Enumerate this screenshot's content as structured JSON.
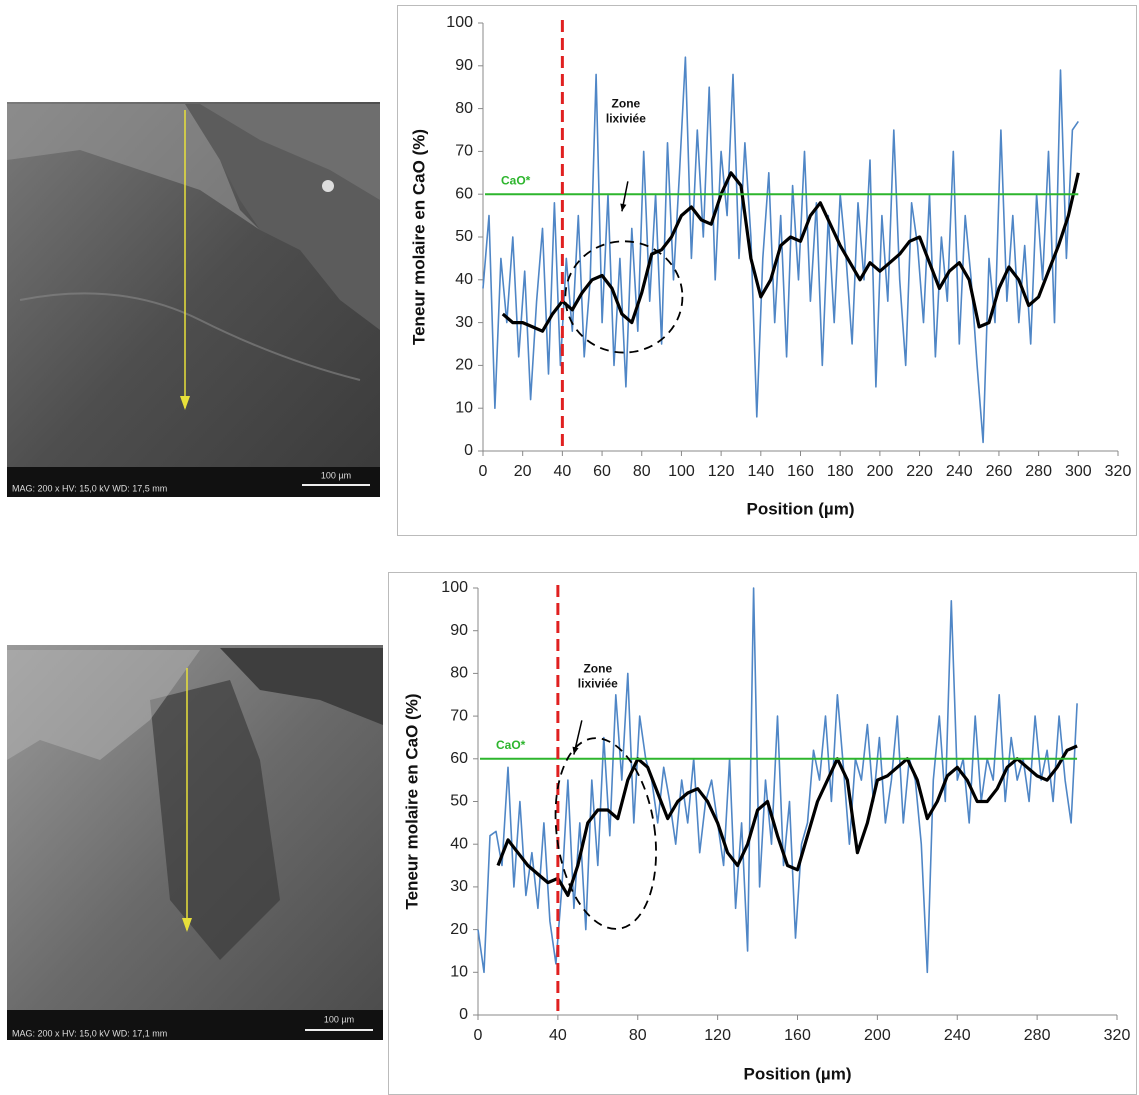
{
  "images": [
    {
      "info": "MAG: 200 x    HV: 15,0 kV    WD: 17,5 mm",
      "scale": "100 µm"
    },
    {
      "info": "MAG: 200 x    HV: 15,0 kV    WD: 17,1 mm",
      "scale": "100 µm"
    }
  ],
  "chart_data": [
    {
      "type": "line",
      "xlabel": "Position (µm)",
      "ylabel": "Teneur molaire en CaO (%)",
      "xlim": [
        0,
        320
      ],
      "xticks": [
        0,
        20,
        40,
        60,
        80,
        100,
        120,
        140,
        160,
        180,
        200,
        220,
        240,
        260,
        280,
        300,
        320
      ],
      "ylim": [
        0,
        100
      ],
      "yticks": [
        0,
        10,
        20,
        30,
        40,
        50,
        60,
        70,
        80,
        90,
        100
      ],
      "vline": 40,
      "vline_color": "#e02020",
      "hline": {
        "value": 60,
        "label": "CaO*"
      },
      "hline_color": "#2db52d",
      "annotation": [
        "Zone",
        "lixiviée"
      ],
      "series": [
        {
          "color": "#4f86c6",
          "width": 1.6,
          "x": [
            0,
            3,
            6,
            9,
            12,
            15,
            18,
            21,
            24,
            27,
            30,
            33,
            36,
            39,
            42,
            45,
            48,
            51,
            54,
            57,
            60,
            63,
            66,
            69,
            72,
            75,
            78,
            81,
            84,
            87,
            90,
            93,
            96,
            99,
            102,
            105,
            108,
            111,
            114,
            117,
            120,
            123,
            126,
            129,
            132,
            135,
            138,
            141,
            144,
            147,
            150,
            153,
            156,
            159,
            162,
            165,
            168,
            171,
            174,
            177,
            180,
            183,
            186,
            189,
            192,
            195,
            198,
            201,
            204,
            207,
            210,
            213,
            216,
            219,
            222,
            225,
            228,
            231,
            234,
            237,
            240,
            243,
            246,
            249,
            252,
            255,
            258,
            261,
            264,
            267,
            270,
            273,
            276,
            279,
            282,
            285,
            288,
            291,
            294,
            297,
            300
          ],
          "values": [
            38,
            55,
            10,
            45,
            30,
            50,
            22,
            42,
            12,
            35,
            52,
            18,
            58,
            20,
            45,
            28,
            55,
            22,
            40,
            88,
            30,
            60,
            20,
            45,
            15,
            52,
            28,
            70,
            35,
            60,
            25,
            72,
            40,
            65,
            92,
            45,
            75,
            50,
            85,
            40,
            70,
            55,
            88,
            45,
            72,
            50,
            8,
            45,
            65,
            30,
            55,
            22,
            62,
            40,
            70,
            35,
            58,
            20,
            55,
            30,
            60,
            45,
            25,
            58,
            40,
            68,
            15,
            55,
            35,
            75,
            40,
            20,
            58,
            48,
            30,
            60,
            22,
            50,
            35,
            70,
            25,
            55,
            40,
            20,
            2,
            45,
            30,
            75,
            35,
            55,
            30,
            48,
            25,
            60,
            40,
            70,
            30,
            89,
            45,
            75,
            77
          ]
        },
        {
          "color": "#000000",
          "width": 3.2,
          "x": [
            10,
            15,
            20,
            25,
            30,
            35,
            40,
            45,
            50,
            55,
            60,
            65,
            70,
            75,
            80,
            85,
            90,
            95,
            100,
            105,
            110,
            115,
            120,
            125,
            130,
            135,
            140,
            145,
            150,
            155,
            160,
            165,
            170,
            175,
            180,
            185,
            190,
            195,
            200,
            205,
            210,
            215,
            220,
            225,
            230,
            235,
            240,
            245,
            250,
            255,
            260,
            265,
            270,
            275,
            280,
            285,
            290,
            295,
            300
          ],
          "values": [
            32,
            30,
            30,
            29,
            28,
            32,
            35,
            33,
            37,
            40,
            41,
            38,
            32,
            30,
            37,
            46,
            47,
            50,
            55,
            57,
            54,
            53,
            60,
            65,
            62,
            45,
            36,
            40,
            48,
            50,
            49,
            55,
            58,
            53,
            48,
            44,
            40,
            44,
            42,
            44,
            46,
            49,
            50,
            44,
            38,
            42,
            44,
            40,
            29,
            30,
            38,
            43,
            40,
            34,
            36,
            42,
            48,
            55,
            65
          ]
        }
      ]
    },
    {
      "type": "line",
      "xlabel": "Position (µm)",
      "ylabel": "Teneur molaire en CaO (%)",
      "xlim": [
        0,
        320
      ],
      "xticks": [
        0,
        40,
        80,
        120,
        160,
        200,
        240,
        280,
        320
      ],
      "ylim": [
        0,
        100
      ],
      "yticks": [
        0,
        10,
        20,
        30,
        40,
        50,
        60,
        70,
        80,
        90,
        100
      ],
      "vline": 40,
      "vline_color": "#e02020",
      "hline": {
        "value": 60,
        "label": "CaO*"
      },
      "hline_color": "#2db52d",
      "annotation": [
        "Zone",
        "lixiviée"
      ],
      "series": [
        {
          "color": "#4f86c6",
          "width": 1.6,
          "x": [
            0,
            3,
            6,
            9,
            12,
            15,
            18,
            21,
            24,
            27,
            30,
            33,
            36,
            39,
            42,
            45,
            48,
            51,
            54,
            57,
            60,
            63,
            66,
            69,
            72,
            75,
            78,
            81,
            84,
            87,
            90,
            93,
            96,
            99,
            102,
            105,
            108,
            111,
            114,
            117,
            120,
            123,
            126,
            129,
            132,
            135,
            138,
            141,
            144,
            147,
            150,
            153,
            156,
            159,
            162,
            165,
            168,
            171,
            174,
            177,
            180,
            183,
            186,
            189,
            192,
            195,
            198,
            201,
            204,
            207,
            210,
            213,
            216,
            219,
            222,
            225,
            228,
            231,
            234,
            237,
            240,
            243,
            246,
            249,
            252,
            255,
            258,
            261,
            264,
            267,
            270,
            273,
            276,
            279,
            282,
            285,
            288,
            291,
            294,
            297,
            300
          ],
          "values": [
            20,
            10,
            42,
            43,
            35,
            58,
            30,
            50,
            28,
            38,
            25,
            45,
            22,
            12,
            30,
            55,
            25,
            45,
            20,
            55,
            35,
            65,
            42,
            75,
            55,
            80,
            45,
            70,
            60,
            55,
            45,
            58,
            50,
            40,
            55,
            45,
            60,
            38,
            50,
            55,
            45,
            35,
            60,
            25,
            45,
            15,
            100,
            30,
            55,
            40,
            70,
            35,
            50,
            18,
            40,
            45,
            62,
            55,
            70,
            50,
            75,
            58,
            40,
            60,
            55,
            68,
            50,
            65,
            45,
            55,
            70,
            45,
            60,
            55,
            40,
            10,
            55,
            70,
            50,
            97,
            55,
            60,
            45,
            70,
            50,
            60,
            55,
            75,
            50,
            65,
            55,
            60,
            50,
            70,
            55,
            62,
            50,
            70,
            55,
            45,
            73
          ]
        },
        {
          "color": "#000000",
          "width": 3.2,
          "x": [
            10,
            15,
            20,
            25,
            30,
            35,
            40,
            45,
            50,
            55,
            60,
            65,
            70,
            75,
            80,
            85,
            90,
            95,
            100,
            105,
            110,
            115,
            120,
            125,
            130,
            135,
            140,
            145,
            150,
            155,
            160,
            165,
            170,
            175,
            180,
            185,
            190,
            195,
            200,
            205,
            210,
            215,
            220,
            225,
            230,
            235,
            240,
            245,
            250,
            255,
            260,
            265,
            270,
            275,
            280,
            285,
            290,
            295,
            300
          ],
          "values": [
            35,
            41,
            38,
            35,
            33,
            31,
            32,
            28,
            35,
            45,
            48,
            48,
            46,
            55,
            60,
            58,
            52,
            46,
            50,
            52,
            53,
            50,
            45,
            38,
            35,
            40,
            48,
            50,
            42,
            35,
            34,
            42,
            50,
            55,
            60,
            55,
            38,
            45,
            55,
            56,
            58,
            60,
            55,
            46,
            50,
            56,
            58,
            55,
            50,
            50,
            53,
            58,
            60,
            58,
            56,
            55,
            58,
            62,
            63
          ]
        }
      ]
    }
  ]
}
